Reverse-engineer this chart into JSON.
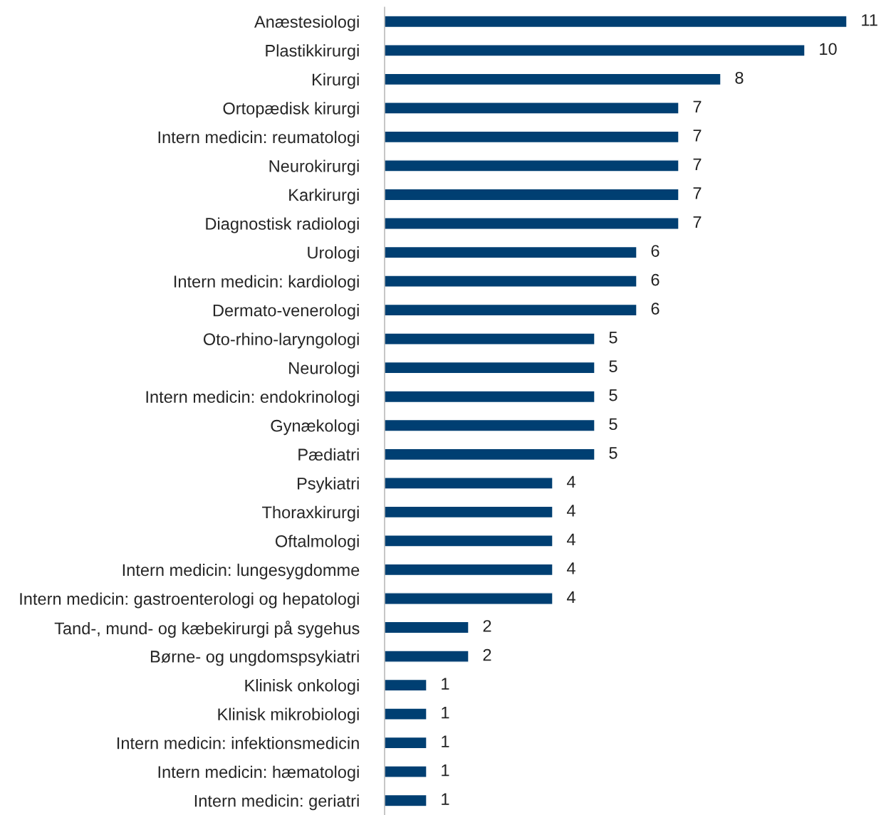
{
  "chart_data": {
    "type": "bar",
    "orientation": "horizontal",
    "data_labels": true,
    "grid": false,
    "legend": false,
    "color": "#003f72",
    "categories": [
      "Anæstesiologi",
      "Plastikkirurgi",
      "Kirurgi",
      "Ortopædisk kirurgi",
      "Intern medicin: reumatologi",
      "Neurokirurgi",
      "Karkirurgi",
      "Diagnostisk radiologi",
      "Urologi",
      "Intern medicin: kardiologi",
      "Dermato-venerologi",
      "Oto-rhino-laryngologi",
      "Neurologi",
      "Intern medicin: endokrinologi",
      "Gynækologi",
      "Pædiatri",
      "Psykiatri",
      "Thoraxkirurgi",
      "Oftalmologi",
      "Intern medicin: lungesygdomme",
      "Intern medicin: gastroenterologi og hepatologi",
      "Tand-, mund- og kæbekirurgi på sygehus",
      "Børne- og ungdomspsykiatri",
      "Klinisk onkologi",
      "Klinisk mikrobiologi",
      "Intern medicin: infektionsmedicin",
      "Intern medicin: hæmatologi",
      "Intern medicin: geriatri"
    ],
    "values": [
      11,
      10,
      8,
      7,
      7,
      7,
      7,
      7,
      6,
      6,
      6,
      5,
      5,
      5,
      5,
      5,
      4,
      4,
      4,
      4,
      4,
      2,
      2,
      1,
      1,
      1,
      1,
      1
    ]
  }
}
